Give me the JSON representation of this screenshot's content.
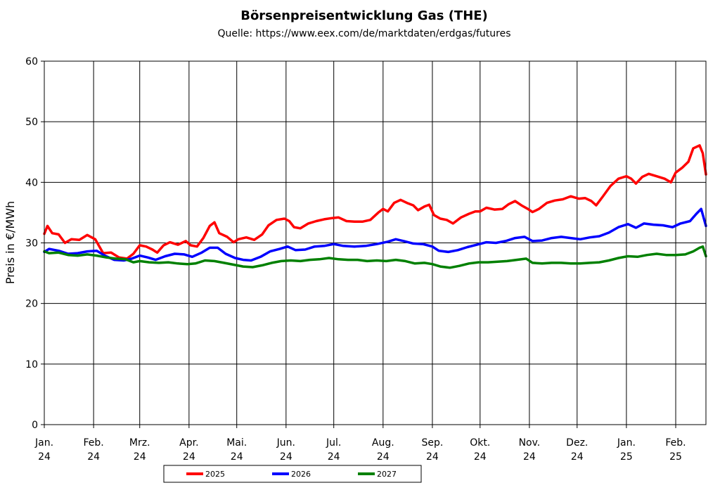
{
  "chart_data": {
    "type": "line",
    "title": "Börsenpreisentwicklung Gas (THE)",
    "subtitle": "Quelle: https://www.eex.com/de/marktdaten/erdgas/futures",
    "ylabel": "Preis in €/MWh",
    "xlabel": "",
    "ylim": [
      0,
      60
    ],
    "y_ticks": [
      "0",
      "10",
      "20",
      "30",
      "40",
      "50",
      "60"
    ],
    "x_range": [
      "2024-01-01",
      "2025-02-20"
    ],
    "x_ticks": [
      {
        "date": "2024-01-01",
        "line1": "Jan.",
        "line2": "24"
      },
      {
        "date": "2024-02-01",
        "line1": "Feb.",
        "line2": "24"
      },
      {
        "date": "2024-03-01",
        "line1": "Mrz.",
        "line2": "24"
      },
      {
        "date": "2024-04-01",
        "line1": "Apr.",
        "line2": "24"
      },
      {
        "date": "2024-05-01",
        "line1": "Mai.",
        "line2": "24"
      },
      {
        "date": "2024-06-01",
        "line1": "Jun.",
        "line2": "24"
      },
      {
        "date": "2024-07-01",
        "line1": "Jul.",
        "line2": "24"
      },
      {
        "date": "2024-08-01",
        "line1": "Aug.",
        "line2": "24"
      },
      {
        "date": "2024-09-01",
        "line1": "Sep.",
        "line2": "24"
      },
      {
        "date": "2024-10-01",
        "line1": "Okt.",
        "line2": "24"
      },
      {
        "date": "2024-11-01",
        "line1": "Nov.",
        "line2": "24"
      },
      {
        "date": "2024-12-01",
        "line1": "Dez.",
        "line2": "24"
      },
      {
        "date": "2025-01-01",
        "line1": "Jan.",
        "line2": "25"
      },
      {
        "date": "2025-02-01",
        "line1": "Feb.",
        "line2": "25"
      }
    ],
    "grid": true,
    "legend_position": "bottom",
    "series": [
      {
        "name": "2025",
        "color": "#ff0000",
        "points": [
          [
            "2024-01-01",
            31.5
          ],
          [
            "2024-01-03",
            32.8
          ],
          [
            "2024-01-06",
            31.6
          ],
          [
            "2024-01-10",
            31.4
          ],
          [
            "2024-01-14",
            30.0
          ],
          [
            "2024-01-18",
            30.6
          ],
          [
            "2024-01-23",
            30.5
          ],
          [
            "2024-01-28",
            31.3
          ],
          [
            "2024-02-02",
            30.6
          ],
          [
            "2024-02-07",
            28.3
          ],
          [
            "2024-02-12",
            28.4
          ],
          [
            "2024-02-17",
            27.6
          ],
          [
            "2024-02-22",
            27.4
          ],
          [
            "2024-02-26",
            28.2
          ],
          [
            "2024-03-01",
            29.6
          ],
          [
            "2024-03-05",
            29.4
          ],
          [
            "2024-03-09",
            28.9
          ],
          [
            "2024-03-12",
            28.4
          ],
          [
            "2024-03-16",
            29.6
          ],
          [
            "2024-03-20",
            30.1
          ],
          [
            "2024-03-25",
            29.7
          ],
          [
            "2024-03-30",
            30.3
          ],
          [
            "2024-04-02",
            29.6
          ],
          [
            "2024-04-06",
            29.4
          ],
          [
            "2024-04-10",
            30.8
          ],
          [
            "2024-04-14",
            32.8
          ],
          [
            "2024-04-17",
            33.4
          ],
          [
            "2024-04-20",
            31.6
          ],
          [
            "2024-04-25",
            31.0
          ],
          [
            "2024-04-29",
            30.1
          ],
          [
            "2024-05-02",
            30.6
          ],
          [
            "2024-05-07",
            30.9
          ],
          [
            "2024-05-12",
            30.5
          ],
          [
            "2024-05-17",
            31.4
          ],
          [
            "2024-05-21",
            32.9
          ],
          [
            "2024-05-26",
            33.8
          ],
          [
            "2024-05-31",
            34.0
          ],
          [
            "2024-06-03",
            33.6
          ],
          [
            "2024-06-06",
            32.6
          ],
          [
            "2024-06-10",
            32.4
          ],
          [
            "2024-06-15",
            33.2
          ],
          [
            "2024-06-20",
            33.6
          ],
          [
            "2024-06-25",
            33.9
          ],
          [
            "2024-06-30",
            34.1
          ],
          [
            "2024-07-04",
            34.2
          ],
          [
            "2024-07-09",
            33.6
          ],
          [
            "2024-07-14",
            33.5
          ],
          [
            "2024-07-19",
            33.5
          ],
          [
            "2024-07-24",
            33.8
          ],
          [
            "2024-07-29",
            35.0
          ],
          [
            "2024-08-01",
            35.6
          ],
          [
            "2024-08-04",
            35.2
          ],
          [
            "2024-08-08",
            36.6
          ],
          [
            "2024-08-12",
            37.1
          ],
          [
            "2024-08-16",
            36.6
          ],
          [
            "2024-08-20",
            36.2
          ],
          [
            "2024-08-23",
            35.4
          ],
          [
            "2024-08-27",
            36.0
          ],
          [
            "2024-08-30",
            36.3
          ],
          [
            "2024-09-02",
            34.6
          ],
          [
            "2024-09-06",
            34.0
          ],
          [
            "2024-09-10",
            33.8
          ],
          [
            "2024-09-14",
            33.2
          ],
          [
            "2024-09-19",
            34.2
          ],
          [
            "2024-09-24",
            34.8
          ],
          [
            "2024-09-28",
            35.2
          ],
          [
            "2024-10-01",
            35.2
          ],
          [
            "2024-10-05",
            35.8
          ],
          [
            "2024-10-10",
            35.5
          ],
          [
            "2024-10-15",
            35.6
          ],
          [
            "2024-10-19",
            36.4
          ],
          [
            "2024-10-23",
            36.9
          ],
          [
            "2024-10-27",
            36.2
          ],
          [
            "2024-10-31",
            35.6
          ],
          [
            "2024-11-03",
            35.1
          ],
          [
            "2024-11-07",
            35.6
          ],
          [
            "2024-11-12",
            36.6
          ],
          [
            "2024-11-17",
            37.0
          ],
          [
            "2024-11-22",
            37.2
          ],
          [
            "2024-11-27",
            37.7
          ],
          [
            "2024-12-02",
            37.3
          ],
          [
            "2024-12-06",
            37.4
          ],
          [
            "2024-12-10",
            36.9
          ],
          [
            "2024-12-13",
            36.2
          ],
          [
            "2024-12-17",
            37.6
          ],
          [
            "2024-12-22",
            39.4
          ],
          [
            "2024-12-27",
            40.6
          ],
          [
            "2025-01-01",
            41.0
          ],
          [
            "2025-01-04",
            40.6
          ],
          [
            "2025-01-07",
            39.8
          ],
          [
            "2025-01-11",
            40.9
          ],
          [
            "2025-01-15",
            41.4
          ],
          [
            "2025-01-20",
            41.0
          ],
          [
            "2025-01-25",
            40.6
          ],
          [
            "2025-01-29",
            40.0
          ],
          [
            "2025-02-01",
            41.6
          ],
          [
            "2025-02-05",
            42.4
          ],
          [
            "2025-02-09",
            43.4
          ],
          [
            "2025-02-12",
            45.6
          ],
          [
            "2025-02-16",
            46.1
          ],
          [
            "2025-02-18",
            44.8
          ],
          [
            "2025-02-20",
            41.3
          ]
        ]
      },
      {
        "name": "2026",
        "color": "#0000ff",
        "points": [
          [
            "2024-01-01",
            28.5
          ],
          [
            "2024-01-04",
            29.0
          ],
          [
            "2024-01-10",
            28.7
          ],
          [
            "2024-01-16",
            28.2
          ],
          [
            "2024-01-22",
            28.3
          ],
          [
            "2024-01-28",
            28.6
          ],
          [
            "2024-02-03",
            28.7
          ],
          [
            "2024-02-08",
            27.9
          ],
          [
            "2024-02-14",
            27.2
          ],
          [
            "2024-02-20",
            27.1
          ],
          [
            "2024-02-25",
            27.4
          ],
          [
            "2024-03-01",
            27.9
          ],
          [
            "2024-03-06",
            27.6
          ],
          [
            "2024-03-11",
            27.2
          ],
          [
            "2024-03-17",
            27.8
          ],
          [
            "2024-03-23",
            28.2
          ],
          [
            "2024-03-29",
            28.1
          ],
          [
            "2024-04-03",
            27.7
          ],
          [
            "2024-04-09",
            28.4
          ],
          [
            "2024-04-14",
            29.2
          ],
          [
            "2024-04-19",
            29.2
          ],
          [
            "2024-04-24",
            28.2
          ],
          [
            "2024-04-30",
            27.5
          ],
          [
            "2024-05-05",
            27.2
          ],
          [
            "2024-05-10",
            27.1
          ],
          [
            "2024-05-16",
            27.7
          ],
          [
            "2024-05-22",
            28.6
          ],
          [
            "2024-05-28",
            29.0
          ],
          [
            "2024-06-02",
            29.4
          ],
          [
            "2024-06-07",
            28.8
          ],
          [
            "2024-06-13",
            28.9
          ],
          [
            "2024-06-19",
            29.4
          ],
          [
            "2024-06-25",
            29.5
          ],
          [
            "2024-07-01",
            29.8
          ],
          [
            "2024-07-07",
            29.5
          ],
          [
            "2024-07-14",
            29.4
          ],
          [
            "2024-07-21",
            29.5
          ],
          [
            "2024-07-28",
            29.8
          ],
          [
            "2024-08-04",
            30.2
          ],
          [
            "2024-08-09",
            30.6
          ],
          [
            "2024-08-14",
            30.3
          ],
          [
            "2024-08-20",
            29.9
          ],
          [
            "2024-08-26",
            29.8
          ],
          [
            "2024-09-01",
            29.4
          ],
          [
            "2024-09-05",
            28.7
          ],
          [
            "2024-09-11",
            28.5
          ],
          [
            "2024-09-17",
            28.8
          ],
          [
            "2024-09-23",
            29.3
          ],
          [
            "2024-09-29",
            29.7
          ],
          [
            "2024-10-05",
            30.1
          ],
          [
            "2024-10-11",
            30.0
          ],
          [
            "2024-10-17",
            30.3
          ],
          [
            "2024-10-23",
            30.8
          ],
          [
            "2024-10-29",
            31.0
          ],
          [
            "2024-11-03",
            30.3
          ],
          [
            "2024-11-09",
            30.4
          ],
          [
            "2024-11-15",
            30.8
          ],
          [
            "2024-11-21",
            31.0
          ],
          [
            "2024-11-27",
            30.8
          ],
          [
            "2024-12-03",
            30.6
          ],
          [
            "2024-12-09",
            30.9
          ],
          [
            "2024-12-15",
            31.1
          ],
          [
            "2024-12-21",
            31.7
          ],
          [
            "2024-12-27",
            32.6
          ],
          [
            "2025-01-02",
            33.1
          ],
          [
            "2025-01-07",
            32.5
          ],
          [
            "2025-01-12",
            33.2
          ],
          [
            "2025-01-18",
            33.0
          ],
          [
            "2025-01-24",
            32.9
          ],
          [
            "2025-01-30",
            32.6
          ],
          [
            "2025-02-04",
            33.2
          ],
          [
            "2025-02-10",
            33.6
          ],
          [
            "2025-02-14",
            34.8
          ],
          [
            "2025-02-17",
            35.6
          ],
          [
            "2025-02-20",
            32.8
          ]
        ]
      },
      {
        "name": "2027",
        "color": "#008000",
        "points": [
          [
            "2024-01-01",
            28.6
          ],
          [
            "2024-01-04",
            28.3
          ],
          [
            "2024-01-10",
            28.4
          ],
          [
            "2024-01-16",
            28.0
          ],
          [
            "2024-01-22",
            27.9
          ],
          [
            "2024-01-28",
            28.1
          ],
          [
            "2024-02-03",
            27.9
          ],
          [
            "2024-02-09",
            27.6
          ],
          [
            "2024-02-15",
            27.4
          ],
          [
            "2024-02-21",
            27.3
          ],
          [
            "2024-02-26",
            26.8
          ],
          [
            "2024-03-01",
            27.0
          ],
          [
            "2024-03-07",
            26.8
          ],
          [
            "2024-03-13",
            26.7
          ],
          [
            "2024-03-19",
            26.8
          ],
          [
            "2024-03-25",
            26.6
          ],
          [
            "2024-03-31",
            26.5
          ],
          [
            "2024-04-05",
            26.6
          ],
          [
            "2024-04-11",
            27.1
          ],
          [
            "2024-04-17",
            27.0
          ],
          [
            "2024-04-23",
            26.7
          ],
          [
            "2024-04-29",
            26.4
          ],
          [
            "2024-05-05",
            26.1
          ],
          [
            "2024-05-11",
            26.0
          ],
          [
            "2024-05-17",
            26.3
          ],
          [
            "2024-05-23",
            26.7
          ],
          [
            "2024-05-29",
            27.0
          ],
          [
            "2024-06-04",
            27.1
          ],
          [
            "2024-06-10",
            27.0
          ],
          [
            "2024-06-16",
            27.2
          ],
          [
            "2024-06-22",
            27.3
          ],
          [
            "2024-06-28",
            27.5
          ],
          [
            "2024-07-04",
            27.3
          ],
          [
            "2024-07-10",
            27.2
          ],
          [
            "2024-07-16",
            27.2
          ],
          [
            "2024-07-22",
            27.0
          ],
          [
            "2024-07-28",
            27.1
          ],
          [
            "2024-08-03",
            27.0
          ],
          [
            "2024-08-09",
            27.2
          ],
          [
            "2024-08-15",
            27.0
          ],
          [
            "2024-08-21",
            26.6
          ],
          [
            "2024-08-27",
            26.7
          ],
          [
            "2024-09-01",
            26.5
          ],
          [
            "2024-09-06",
            26.1
          ],
          [
            "2024-09-12",
            25.9
          ],
          [
            "2024-09-18",
            26.2
          ],
          [
            "2024-09-24",
            26.6
          ],
          [
            "2024-09-30",
            26.8
          ],
          [
            "2024-10-06",
            26.8
          ],
          [
            "2024-10-12",
            26.9
          ],
          [
            "2024-10-18",
            27.0
          ],
          [
            "2024-10-24",
            27.2
          ],
          [
            "2024-10-30",
            27.4
          ],
          [
            "2024-11-03",
            26.7
          ],
          [
            "2024-11-09",
            26.6
          ],
          [
            "2024-11-15",
            26.7
          ],
          [
            "2024-11-21",
            26.7
          ],
          [
            "2024-11-27",
            26.6
          ],
          [
            "2024-12-03",
            26.6
          ],
          [
            "2024-12-09",
            26.7
          ],
          [
            "2024-12-15",
            26.8
          ],
          [
            "2024-12-21",
            27.1
          ],
          [
            "2024-12-27",
            27.5
          ],
          [
            "2025-01-02",
            27.8
          ],
          [
            "2025-01-08",
            27.7
          ],
          [
            "2025-01-14",
            28.0
          ],
          [
            "2025-01-20",
            28.2
          ],
          [
            "2025-01-26",
            28.0
          ],
          [
            "2025-02-01",
            28.0
          ],
          [
            "2025-02-07",
            28.1
          ],
          [
            "2025-02-12",
            28.6
          ],
          [
            "2025-02-16",
            29.2
          ],
          [
            "2025-02-18",
            29.4
          ],
          [
            "2025-02-20",
            27.8
          ]
        ]
      }
    ]
  }
}
